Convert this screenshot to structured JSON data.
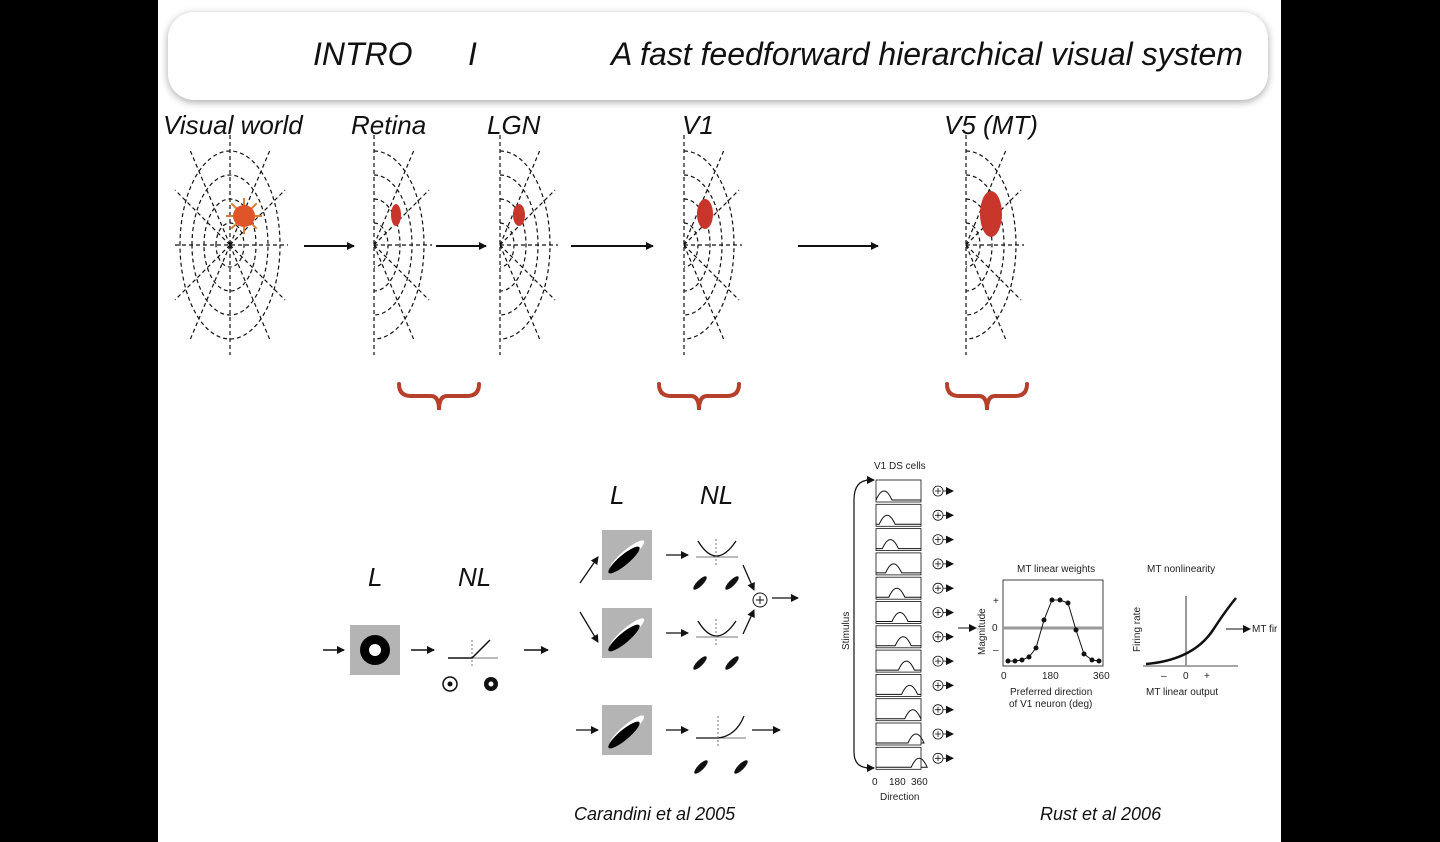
{
  "title": {
    "intro": "INTRO",
    "part": "I",
    "heading": "A fast feedforward hierarchical visual system"
  },
  "stages": [
    "Visual world",
    "Retina",
    "LGN",
    "V1",
    "V5 (MT)"
  ],
  "model_left": {
    "l": "L",
    "nl": "NL"
  },
  "model_middle": {
    "l": "L",
    "nl": "NL",
    "citation": "Carandini et al 2005"
  },
  "model_right": {
    "v1_label": "V1 DS cells",
    "stimulus_label": "Stimulus",
    "x_ticks": [
      "0",
      "180",
      "360"
    ],
    "x_label": "Direction",
    "weights_title": "MT linear weights",
    "weights_ylabel": "Magnitude",
    "weights_yticks": [
      "+",
      "0",
      "–"
    ],
    "weights_xticks": [
      "0",
      "180",
      "360"
    ],
    "weights_xlabel_1": "Preferred direction",
    "weights_xlabel_2": "of  V1 neuron (deg)",
    "nonlin_title": "MT nonlinearity",
    "nonlin_ylabel": "Firing rate",
    "nonlin_xticks": [
      "–",
      "0",
      "+"
    ],
    "nonlin_xlabel": "MT linear output",
    "output_label": "MT fir",
    "citation": "Rust et al 2006"
  },
  "colors": {
    "accent": "#c8352b",
    "bracket": "#b5402c",
    "gray_box": "#b4b4b4"
  }
}
